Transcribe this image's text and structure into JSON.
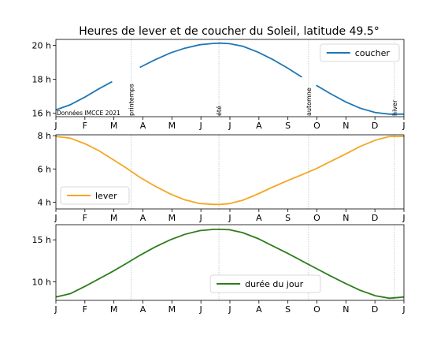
{
  "chart_data": {
    "type": "line",
    "title": "Heures de lever et de coucher du Soleil, latitude 49.5°",
    "source_note": "Données IMCCE 2021",
    "months": [
      "J",
      "F",
      "M",
      "A",
      "M",
      "J",
      "J",
      "A",
      "S",
      "O",
      "N",
      "D",
      "J"
    ],
    "xlim_days": [
      0,
      365
    ],
    "grid": false,
    "season_markers": [
      {
        "label": "printemps",
        "day": 79
      },
      {
        "label": "été",
        "day": 171
      },
      {
        "label": "automne",
        "day": 265
      },
      {
        "label": "hiver",
        "day": 355
      }
    ],
    "panels": [
      {
        "id": "coucher",
        "series": [
          {
            "name": "coucher",
            "color": "#1f77b4",
            "x_day": [
              0,
              15,
              31,
              45,
              59,
              74,
              88,
              104,
              120,
              135,
              151,
              166,
              172,
              182,
              196,
              212,
              227,
              243,
              258,
              269,
              273,
              288,
              304,
              319,
              335,
              350,
              365
            ],
            "y_hours": [
              16.2,
              16.5,
              16.97,
              17.44,
              17.86,
              18.3,
              18.7,
              19.15,
              19.55,
              19.83,
              20.04,
              20.12,
              20.13,
              20.1,
              19.95,
              19.6,
              19.18,
              18.66,
              18.13,
              17.72,
              17.65,
              17.15,
              16.67,
              16.3,
              16.04,
              15.95,
              15.95
            ],
            "gaps": [
              [
                70,
                78
              ],
              [
                264,
                272
              ]
            ]
          }
        ],
        "yticks": [
          16,
          18,
          20
        ],
        "ytick_labels": [
          "16 h",
          "18 h",
          "20 h"
        ],
        "ylim": [
          15.8,
          20.35
        ],
        "legend_loc": "upper right"
      },
      {
        "id": "lever",
        "series": [
          {
            "name": "lever",
            "color": "#f5a623",
            "x_day": [
              0,
              15,
              31,
              45,
              59,
              74,
              88,
              104,
              120,
              135,
              151,
              166,
              172,
              182,
              196,
              212,
              227,
              243,
              258,
              273,
              288,
              304,
              319,
              335,
              350,
              365
            ],
            "y_hours": [
              7.95,
              7.85,
              7.5,
              7.1,
              6.6,
              6.05,
              5.5,
              4.97,
              4.5,
              4.15,
              3.92,
              3.87,
              3.87,
              3.92,
              4.12,
              4.5,
              4.9,
              5.3,
              5.65,
              6.02,
              6.45,
              6.9,
              7.35,
              7.73,
              7.95,
              7.95
            ],
            "gaps": []
          }
        ],
        "yticks": [
          4,
          6,
          8
        ],
        "ytick_labels": [
          "4 h",
          "6 h",
          "8 h"
        ],
        "ylim": [
          3.6,
          8.05
        ],
        "legend_loc": "lower left"
      },
      {
        "id": "duree",
        "series": [
          {
            "name": "durée du jour",
            "color": "#2d7d1a",
            "x_day": [
              0,
              15,
              31,
              45,
              59,
              74,
              88,
              104,
              120,
              135,
              151,
              166,
              172,
              182,
              196,
              212,
              227,
              243,
              258,
              273,
              288,
              304,
              319,
              335,
              350,
              365
            ],
            "y_hours": [
              8.2,
              8.6,
              9.5,
              10.35,
              11.2,
              12.2,
              13.15,
              14.15,
              15.0,
              15.65,
              16.1,
              16.25,
              16.25,
              16.2,
              15.85,
              15.15,
              14.3,
              13.4,
              12.5,
              11.6,
              10.7,
              9.8,
              9.0,
              8.35,
              8.05,
              8.2
            ],
            "gaps": []
          }
        ],
        "yticks": [
          10,
          15
        ],
        "ytick_labels": [
          "10 h",
          "15 h"
        ],
        "ylim": [
          7.8,
          16.8
        ],
        "legend_loc": "lower center"
      }
    ]
  }
}
